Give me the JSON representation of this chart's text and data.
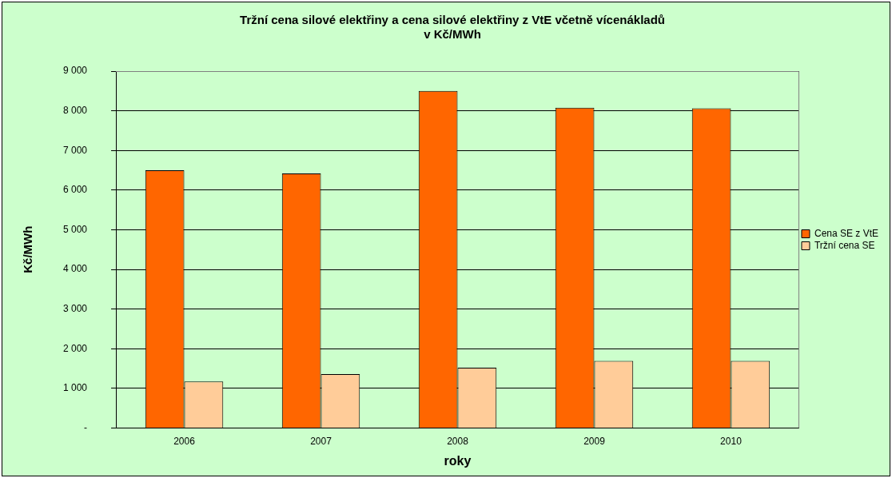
{
  "chart_data": {
    "type": "bar",
    "title": "Tržní cena silové elektřiny a cena silové elektřiny z VtE včetně vícenákladů\nv Kč/MWh",
    "xlabel": "roky",
    "ylabel": "Kč/MWh",
    "categories": [
      "2006",
      "2007",
      "2008",
      "2009",
      "2010"
    ],
    "series": [
      {
        "name": "Cena SE z VtE",
        "color": "#ff6600",
        "values": [
          6500,
          6420,
          8500,
          8080,
          8060
        ]
      },
      {
        "name": "Tržní cena SE",
        "color": "#ffcc99",
        "values": [
          1170,
          1360,
          1520,
          1690,
          1690
        ]
      }
    ],
    "ylim": [
      0,
      9000
    ],
    "yticks": [
      {
        "value": 0,
        "label": "-"
      },
      {
        "value": 1000,
        "label": "1 000"
      },
      {
        "value": 2000,
        "label": "2 000"
      },
      {
        "value": 3000,
        "label": "3 000"
      },
      {
        "value": 4000,
        "label": "4 000"
      },
      {
        "value": 5000,
        "label": "5 000"
      },
      {
        "value": 6000,
        "label": "6 000"
      },
      {
        "value": 7000,
        "label": "7 000"
      },
      {
        "value": 8000,
        "label": "8 000"
      },
      {
        "value": 9000,
        "label": "9 000"
      }
    ],
    "grid": "y",
    "legend": "right"
  }
}
